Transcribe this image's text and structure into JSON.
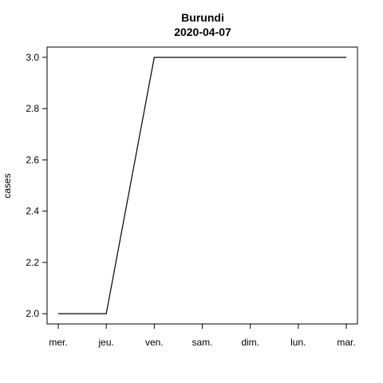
{
  "chart_data": {
    "type": "line",
    "title": "Burundi",
    "subtitle": "2020-04-07",
    "xlabel": "",
    "ylabel": "cases",
    "categories": [
      "mer.",
      "jeu.",
      "ven.",
      "sam.",
      "dim.",
      "lun.",
      "mar."
    ],
    "series": [
      {
        "values": [
          2,
          2,
          3,
          3,
          3,
          3,
          3
        ],
        "color": "#000000"
      }
    ],
    "ylim": [
      1.96,
      3.04
    ],
    "yticks": [
      "2.0",
      "2.2",
      "2.4",
      "2.6",
      "2.8",
      "3.0"
    ],
    "grid": false,
    "legend": "none"
  }
}
